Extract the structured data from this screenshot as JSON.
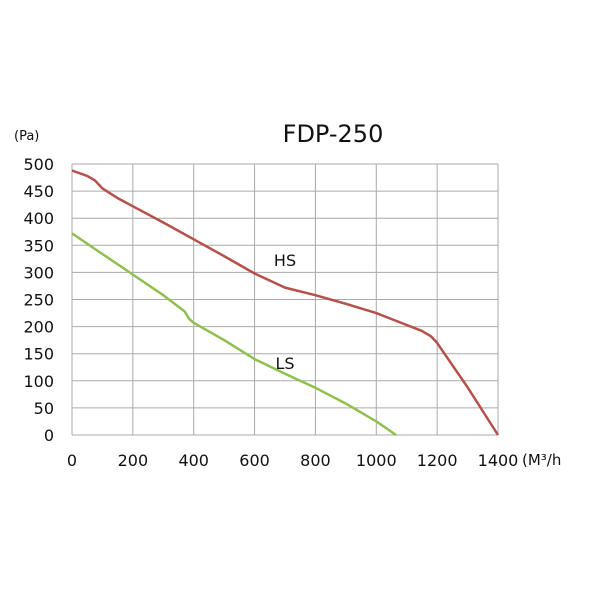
{
  "chart_data": {
    "type": "line",
    "title": "FDP-250",
    "ylabel": "(Pa)",
    "xlabel": "(M³/h",
    "xlim": [
      0,
      1400
    ],
    "ylim": [
      0,
      500
    ],
    "grid": true,
    "xticks": [
      0,
      200,
      400,
      600,
      800,
      1000,
      1200,
      1400
    ],
    "yticks": [
      0,
      50,
      100,
      150,
      200,
      250,
      300,
      350,
      400,
      450,
      500
    ],
    "series": [
      {
        "name": "HS",
        "color": "#b5504a",
        "label_at": [
          700,
          312
        ],
        "points": [
          [
            0,
            488
          ],
          [
            50,
            478
          ],
          [
            75,
            470
          ],
          [
            100,
            455
          ],
          [
            150,
            437
          ],
          [
            200,
            422
          ],
          [
            300,
            392
          ],
          [
            400,
            361
          ],
          [
            500,
            330
          ],
          [
            600,
            298
          ],
          [
            700,
            272
          ],
          [
            800,
            258
          ],
          [
            900,
            242
          ],
          [
            1000,
            225
          ],
          [
            1100,
            203
          ],
          [
            1150,
            192
          ],
          [
            1180,
            182
          ],
          [
            1200,
            170
          ],
          [
            1300,
            88
          ],
          [
            1400,
            0
          ]
        ]
      },
      {
        "name": "LS",
        "color": "#8fbf4f",
        "label_at": [
          700,
          122
        ],
        "points": [
          [
            0,
            372
          ],
          [
            100,
            334
          ],
          [
            200,
            296
          ],
          [
            300,
            258
          ],
          [
            370,
            228
          ],
          [
            385,
            214
          ],
          [
            400,
            207
          ],
          [
            500,
            175
          ],
          [
            600,
            140
          ],
          [
            700,
            113
          ],
          [
            800,
            87
          ],
          [
            900,
            58
          ],
          [
            1000,
            25
          ],
          [
            1065,
            0
          ]
        ]
      }
    ]
  }
}
